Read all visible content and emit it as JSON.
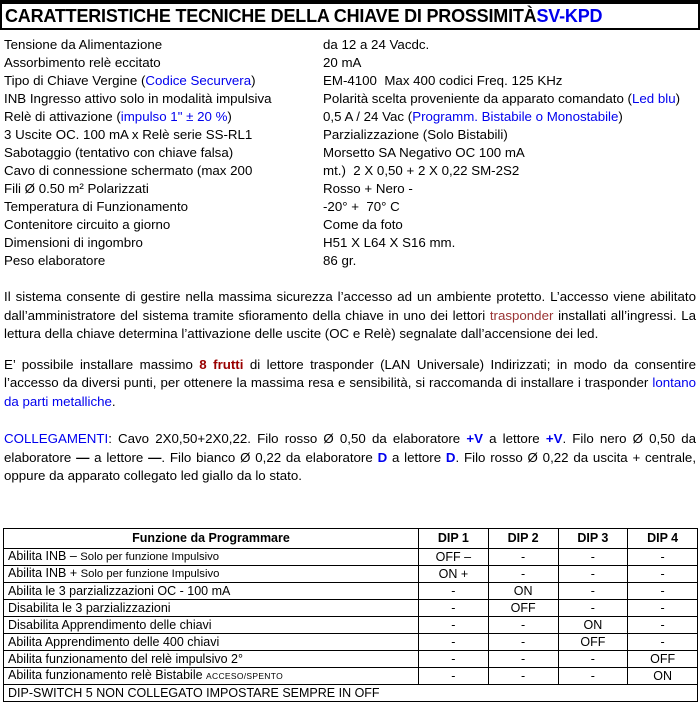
{
  "colors": {
    "accent_blue": "#0000EE",
    "accent_dark_red": "#993333",
    "accent_bold_red": "#990000"
  },
  "title": {
    "main": "CARATTERISTICHE TECNICHE DELLA CHIAVE DI PROSSIMITÀ ",
    "code": "SV-KPD"
  },
  "specs": [
    {
      "label": [
        {
          "t": "Tensione da Alimentazione"
        }
      ],
      "value": [
        {
          "t": "da 12 a 24 Vacdc."
        }
      ]
    },
    {
      "label": [
        {
          "t": "Assorbimento relè eccitato"
        }
      ],
      "value": [
        {
          "t": "20 mA"
        }
      ]
    },
    {
      "label": [
        {
          "t": "Tipo di Chiave Vergine ("
        },
        {
          "t": "Codice Securvera",
          "s": "blue"
        },
        {
          "t": ")"
        }
      ],
      "value": [
        {
          "t": "EM-4100  Max 400 codici Freq. 125 KHz"
        }
      ]
    },
    {
      "label": [
        {
          "t": "INB Ingresso attivo solo in modalità impulsiva"
        }
      ],
      "value": [
        {
          "t": "Polarità scelta proveniente da apparato comandato ("
        },
        {
          "t": "Led blu",
          "s": "blue"
        },
        {
          "t": ")"
        }
      ]
    },
    {
      "label": [
        {
          "t": "Relè di attivazione ("
        },
        {
          "t": "impulso 1\" ± 20 %",
          "s": "blue"
        },
        {
          "t": ")"
        }
      ],
      "value": [
        {
          "t": "0,5 A / 24 Vac ("
        },
        {
          "t": "Programm. Bistabile o Monostabile",
          "s": "blue"
        },
        {
          "t": ")"
        }
      ]
    },
    {
      "label": [
        {
          "t": "3 Uscite OC. 100 mA x Relè serie SS-RL1"
        }
      ],
      "value": [
        {
          "t": "Parzializzazione (Solo Bistabili)"
        }
      ]
    },
    {
      "label": [
        {
          "t": "Sabotaggio (tentativo con chiave falsa)"
        }
      ],
      "value": [
        {
          "t": "Morsetto SA Negativo OC 100 mA"
        }
      ]
    },
    {
      "label": [
        {
          "t": "Cavo di connessione schermato (max 200"
        }
      ],
      "value": [
        {
          "t": "mt.)  2 X 0,50 + 2 X 0,22 SM-2S2"
        }
      ]
    },
    {
      "label": [
        {
          "t": "Fili Ø 0.50 m² Polarizzati"
        }
      ],
      "value": [
        {
          "t": "Rosso + Nero -"
        }
      ]
    },
    {
      "label": [
        {
          "t": "Temperatura di Funzionamento"
        }
      ],
      "value": [
        {
          "t": "-20° +  70° C"
        }
      ]
    },
    {
      "label": [
        {
          "t": "Contenitore circuito a giorno"
        }
      ],
      "value": [
        {
          "t": "Come da foto"
        }
      ]
    },
    {
      "label": [
        {
          "t": "Dimensioni di ingombro"
        }
      ],
      "value": [
        {
          "t": "H51 X L64 X S16 mm."
        }
      ]
    },
    {
      "label": [
        {
          "t": "Peso elaboratore"
        }
      ],
      "value": [
        {
          "t": "86 gr."
        }
      ]
    }
  ],
  "paragraphs": [
    {
      "segments": [
        {
          "t": "Il sistema consente di gestire nella massima sicurezza l’accesso ad un ambiente protetto. L’accesso viene abilitato dall’amministratore del sistema tramite sfioramento della chiave in uno dei lettori "
        },
        {
          "t": "trasponder",
          "s": "red"
        },
        {
          "t": " installati all’ingressi. La lettura della chiave determina l’attivazione delle uscite (OC e Relè) segnalate dall’accensione dei led."
        }
      ]
    },
    {
      "segments": [
        {
          "t": "E’ possibile installare massimo "
        },
        {
          "t": "8 frutti",
          "s": "redbold"
        },
        {
          "t": " di lettore trasponder (LAN Universale) Indirizzati; in modo da consentire l’accesso da diversi punti, per ottenere la massima resa e sensibilità, si raccomanda di installare i trasponder "
        },
        {
          "t": "lontano da parti metalliche",
          "s": "blue"
        },
        {
          "t": "."
        }
      ]
    },
    {
      "segments": [
        {
          "t": "COLLEGAMENTI",
          "s": "blue"
        },
        {
          "t": ": Cavo 2X0,50+2X0,22. Filo rosso Ø 0,50 da elaboratore "
        },
        {
          "t": "+V",
          "s": "bluebold"
        },
        {
          "t": " a lettore "
        },
        {
          "t": "+V",
          "s": "bluebold"
        },
        {
          "t": ". Filo nero Ø 0,50 da elaboratore "
        },
        {
          "t": "—",
          "s": "bold"
        },
        {
          "t": " a lettore "
        },
        {
          "t": "—",
          "s": "bold"
        },
        {
          "t": ". Filo bianco Ø 0,22 da elaboratore "
        },
        {
          "t": "D",
          "s": "bluebold"
        },
        {
          "t": " a lettore "
        },
        {
          "t": "D",
          "s": "bluebold"
        },
        {
          "t": ". Filo rosso Ø 0,22 da uscita + centrale, oppure da apparato collegato led giallo da lo stato."
        }
      ]
    }
  ],
  "table": {
    "headers": [
      "Funzione da Programmare",
      "DIP 1",
      "DIP 2",
      "DIP 3",
      "DIP 4"
    ],
    "rows": [
      {
        "funzione": [
          {
            "t": "Abilita INB – "
          },
          {
            "t": "Solo per funzione Impulsivo",
            "s": "sm"
          }
        ],
        "dips": [
          "OFF –",
          "-",
          "-",
          "-"
        ]
      },
      {
        "funzione": [
          {
            "t": "Abilita INB + "
          },
          {
            "t": "Solo per funzione Impulsivo",
            "s": "sm"
          }
        ],
        "dips": [
          "ON +",
          "-",
          "-",
          "-"
        ]
      },
      {
        "funzione": [
          {
            "t": "Abilita le 3 parzializzazioni OC - 100 mA"
          }
        ],
        "dips": [
          "-",
          "ON",
          "-",
          "-"
        ]
      },
      {
        "funzione": [
          {
            "t": "Disabilita le 3 parzializzazioni"
          }
        ],
        "dips": [
          "-",
          "OFF",
          "-",
          "-"
        ]
      },
      {
        "funzione": [
          {
            "t": "Disabilita Apprendimento delle chiavi"
          }
        ],
        "dips": [
          "-",
          "-",
          "ON",
          "-"
        ]
      },
      {
        "funzione": [
          {
            "t": "Abilita Apprendimento delle 400 chiavi"
          }
        ],
        "dips": [
          "-",
          "-",
          "OFF",
          "-"
        ]
      },
      {
        "funzione": [
          {
            "t": "Abilita funzionamento del relè impulsivo 2°"
          }
        ],
        "dips": [
          "-",
          "-",
          "-",
          "OFF"
        ]
      },
      {
        "funzione": [
          {
            "t": "Abilita funzionamento relè Bistabile "
          },
          {
            "t": "ACCESO/SPENTO",
            "s": "xs"
          }
        ],
        "dips": [
          "-",
          "-",
          "-",
          "ON"
        ]
      }
    ],
    "footer": "DIP-SWITCH 5 NON COLLEGATO IMPOSTARE SEMPRE IN OFF"
  }
}
